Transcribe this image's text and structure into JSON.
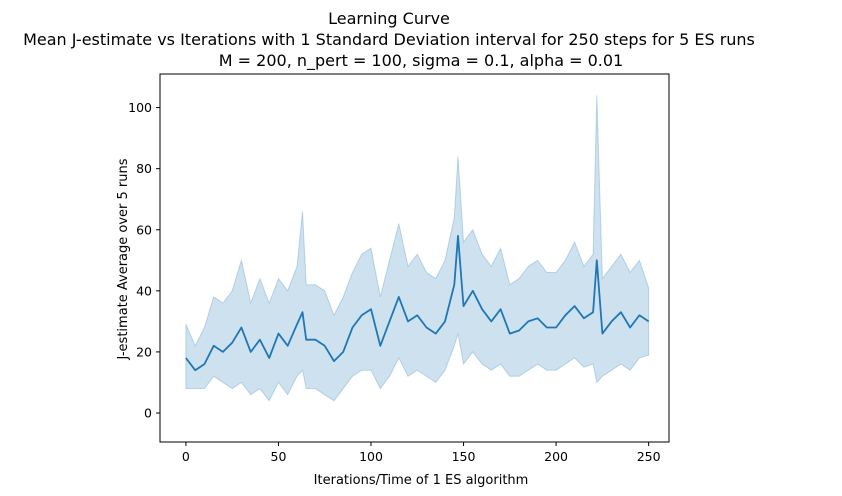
{
  "chart_data": {
    "type": "line",
    "title_lines": [
      "Learning Curve",
      "Mean J-estimate vs Iterations with 1 Standard Deviation interval for 250 steps for 5 ES runs",
      "M = 200, n_pert = 100, sigma = 0.1, alpha = 0.01"
    ],
    "xlabel": "Iterations/Time of 1 ES algorithm",
    "ylabel": "J-estimate Average over 5 runs",
    "xlim": [
      -14,
      261
    ],
    "ylim": [
      -9.5,
      111
    ],
    "xticks": [
      0,
      50,
      100,
      150,
      200,
      250
    ],
    "yticks": [
      0,
      20,
      40,
      60,
      80,
      100
    ],
    "grid": false,
    "line_color": "#1f77b4",
    "band_color": "#1f77b4",
    "series": [
      {
        "x": [
          0,
          5,
          10,
          15,
          20,
          25,
          30,
          35,
          40,
          45,
          50,
          55,
          60,
          63,
          65,
          70,
          75,
          80,
          85,
          90,
          95,
          100,
          105,
          110,
          115,
          120,
          125,
          130,
          135,
          140,
          145,
          147,
          150,
          155,
          160,
          165,
          170,
          175,
          180,
          185,
          190,
          195,
          200,
          205,
          210,
          215,
          220,
          222,
          225,
          230,
          235,
          240,
          245,
          250
        ],
        "mean": [
          18,
          14,
          16,
          22,
          20,
          23,
          28,
          20,
          24,
          18,
          26,
          22,
          29,
          33,
          24,
          24,
          22,
          17,
          20,
          28,
          32,
          34,
          22,
          30,
          38,
          30,
          32,
          28,
          26,
          30,
          42,
          58,
          35,
          40,
          34,
          30,
          34,
          26,
          27,
          30,
          31,
          28,
          28,
          32,
          35,
          31,
          33,
          50,
          26,
          30,
          33,
          28,
          32,
          30
        ],
        "lower": [
          8,
          8,
          8,
          12,
          10,
          8,
          10,
          6,
          8,
          4,
          10,
          6,
          12,
          14,
          8,
          8,
          6,
          4,
          8,
          12,
          14,
          14,
          8,
          12,
          18,
          12,
          14,
          12,
          10,
          14,
          22,
          26,
          16,
          20,
          16,
          14,
          16,
          12,
          12,
          14,
          16,
          14,
          14,
          16,
          18,
          15,
          16,
          10,
          12,
          14,
          16,
          14,
          18,
          19
        ],
        "upper": [
          29,
          22,
          28,
          38,
          36,
          40,
          50,
          36,
          44,
          36,
          44,
          40,
          48,
          66,
          42,
          42,
          40,
          32,
          38,
          46,
          52,
          54,
          38,
          50,
          62,
          48,
          52,
          46,
          44,
          50,
          64,
          84,
          56,
          60,
          52,
          48,
          54,
          42,
          44,
          48,
          50,
          46,
          46,
          50,
          56,
          48,
          52,
          104,
          44,
          48,
          52,
          46,
          50,
          41
        ]
      }
    ]
  }
}
